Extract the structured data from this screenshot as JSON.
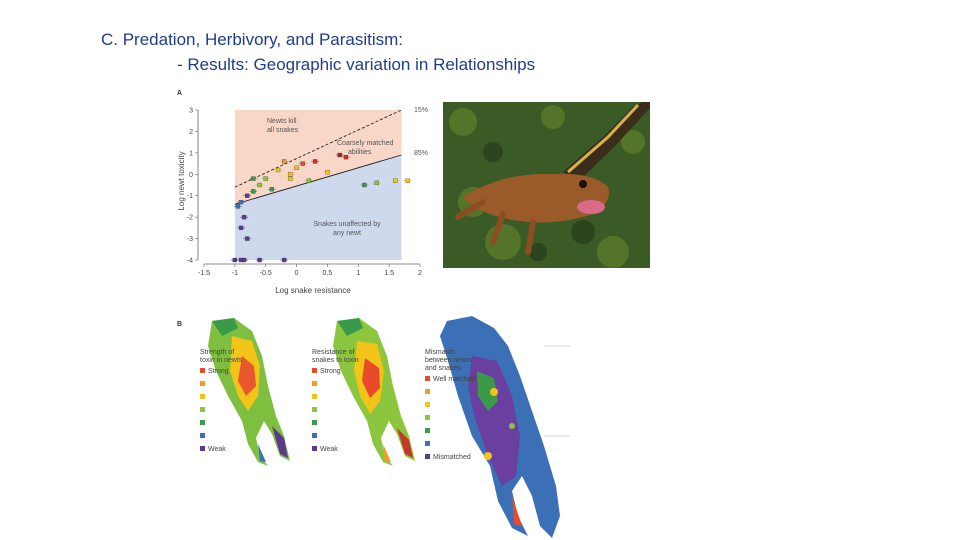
{
  "slide": {
    "title": "C. Predation, Herbivory, and Parasitism:",
    "subtitle": "- Results: Geographic variation in Relationships"
  },
  "panel_a": {
    "label": "A",
    "xlabel": "Log snake resistance",
    "ylabel": "Log newt toxicity",
    "regions": {
      "newts_kill": [
        "Newts kill",
        "all snakes"
      ],
      "matched": [
        "Coarsely matched",
        "abilities"
      ],
      "unaffected": [
        "Snakes unaffected by",
        "any newt"
      ]
    },
    "line_labels": [
      "15%",
      "85%"
    ]
  },
  "panel_b": {
    "label": "B",
    "maps": [
      {
        "title": [
          "Strength of",
          "toxin in newts"
        ],
        "high": "Strong",
        "low": "Weak"
      },
      {
        "title": [
          "Resistance of",
          "snakes to toxin"
        ],
        "high": "Strong",
        "low": "Weak"
      },
      {
        "title": [
          "Mismatch",
          "between newts",
          "and snakes"
        ],
        "high": "Well matched",
        "low": "Mismatched"
      }
    ]
  },
  "chart_data": {
    "type": "scatter",
    "xlabel": "Log snake resistance",
    "ylabel": "Log newt toxicity",
    "xlim": [
      -1.5,
      2
    ],
    "ylim": [
      -4,
      3
    ],
    "x_ticks": [
      "-1.5",
      "-1",
      "-0.5",
      "0",
      "0.5",
      "1",
      "1.5",
      "2"
    ],
    "y_ticks": [
      "-4",
      "-3",
      "-2",
      "-1",
      "0",
      "1",
      "2",
      "3"
    ],
    "points": [
      {
        "x": -1.0,
        "y": -4.0,
        "color": "#5b3a8c"
      },
      {
        "x": -0.9,
        "y": -4.0,
        "color": "#5b3a8c"
      },
      {
        "x": -0.85,
        "y": -4.0,
        "color": "#5b3a8c"
      },
      {
        "x": -0.6,
        "y": -4.0,
        "color": "#5b3a8c"
      },
      {
        "x": -0.2,
        "y": -4.0,
        "color": "#5b3a8c"
      },
      {
        "x": -0.8,
        "y": -3.0,
        "color": "#5b3a8c"
      },
      {
        "x": -0.9,
        "y": -2.5,
        "color": "#5b3a8c"
      },
      {
        "x": -0.85,
        "y": -2.0,
        "color": "#5b3a8c"
      },
      {
        "x": -0.95,
        "y": -1.5,
        "color": "#3b6fb6"
      },
      {
        "x": -0.9,
        "y": -1.3,
        "color": "#3b6fb6"
      },
      {
        "x": -0.8,
        "y": -1.0,
        "color": "#5b3a8c"
      },
      {
        "x": -0.7,
        "y": -0.8,
        "color": "#3a9a4a"
      },
      {
        "x": -0.6,
        "y": -0.5,
        "color": "#8cc63f"
      },
      {
        "x": -0.4,
        "y": -0.7,
        "color": "#3a9a4a"
      },
      {
        "x": -0.5,
        "y": -0.2,
        "color": "#8cc63f"
      },
      {
        "x": -0.7,
        "y": -0.2,
        "color": "#3a9a4a"
      },
      {
        "x": -0.3,
        "y": 0.2,
        "color": "#f2c318"
      },
      {
        "x": -0.1,
        "y": 0.0,
        "color": "#f2c318"
      },
      {
        "x": 0.0,
        "y": 0.3,
        "color": "#f2c318"
      },
      {
        "x": -0.2,
        "y": 0.6,
        "color": "#f29b1f"
      },
      {
        "x": 0.1,
        "y": 0.5,
        "color": "#e94b2a"
      },
      {
        "x": 0.3,
        "y": 0.6,
        "color": "#c0392b"
      },
      {
        "x": 0.5,
        "y": 0.1,
        "color": "#f2c318"
      },
      {
        "x": 0.7,
        "y": 0.9,
        "color": "#8b2c3a"
      },
      {
        "x": 0.8,
        "y": 0.8,
        "color": "#c0392b"
      },
      {
        "x": 0.2,
        "y": -0.3,
        "color": "#8cc63f"
      },
      {
        "x": 1.1,
        "y": -0.5,
        "color": "#3a9a4a"
      },
      {
        "x": 1.3,
        "y": -0.4,
        "color": "#8cc63f"
      },
      {
        "x": 1.6,
        "y": -0.3,
        "color": "#f2c318"
      },
      {
        "x": 1.8,
        "y": -0.3,
        "color": "#f2c318"
      },
      {
        "x": -0.1,
        "y": -0.2,
        "color": "#f2c318"
      }
    ],
    "lines": [
      {
        "label": "15%",
        "x": [
          -1.0,
          1.7
        ],
        "y": [
          -0.6,
          3.0
        ]
      },
      {
        "label": "85%",
        "x": [
          -1.0,
          1.7
        ],
        "y": [
          -1.4,
          0.9
        ]
      }
    ],
    "regions": [
      {
        "name": "Newts kill all snakes",
        "color": "#f8d7c8"
      },
      {
        "name": "Snakes unaffected by any newt",
        "color": "#cfd9ee"
      }
    ]
  }
}
